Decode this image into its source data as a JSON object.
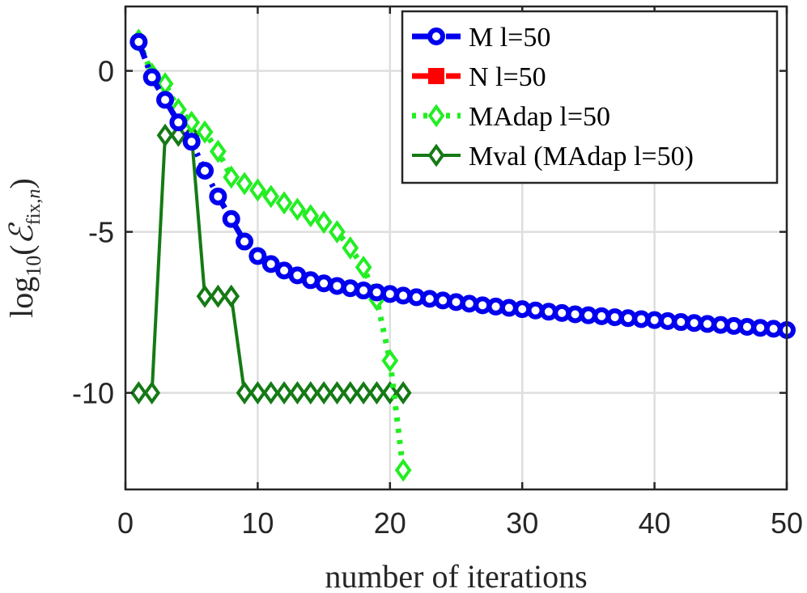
{
  "chart_data": {
    "type": "line",
    "title": "",
    "xlabel": "number of iterations",
    "ylabel": {
      "prefix": "log",
      "sub": "10",
      "open": "(",
      "sym": "ℰ",
      "sym_sub": "fix,",
      "sym_sub_n": "n",
      "close": ")"
    },
    "xlim": [
      0,
      50
    ],
    "ylim": [
      -13,
      2
    ],
    "xticks": [
      0,
      10,
      20,
      30,
      40,
      50
    ],
    "xtick_labels": [
      "0",
      "10",
      "20",
      "30",
      "40",
      "50"
    ],
    "yticks": [
      0,
      -5,
      -10
    ],
    "ytick_labels": [
      "0",
      "-5",
      "-10"
    ],
    "grid": true,
    "legend_position": "top-right",
    "series": [
      {
        "name": "M l=50",
        "color": "#0000ee",
        "marker": "circle",
        "line": "dash-dot",
        "x": [
          1,
          2,
          3,
          4,
          5,
          6,
          7,
          8,
          9,
          10,
          11,
          12,
          13,
          14,
          15,
          16,
          17,
          18,
          19,
          20,
          21,
          22,
          23,
          24,
          25,
          26,
          27,
          28,
          29,
          30,
          31,
          32,
          33,
          34,
          35,
          36,
          37,
          38,
          39,
          40,
          41,
          42,
          43,
          44,
          45,
          46,
          47,
          48,
          49,
          50
        ],
        "y": [
          0.9,
          -0.2,
          -0.9,
          -1.6,
          -2.2,
          -3.1,
          -3.9,
          -4.6,
          -5.3,
          -5.75,
          -6.0,
          -6.2,
          -6.35,
          -6.5,
          -6.6,
          -6.68,
          -6.75,
          -6.82,
          -6.88,
          -6.93,
          -6.98,
          -7.03,
          -7.08,
          -7.13,
          -7.18,
          -7.23,
          -7.28,
          -7.32,
          -7.36,
          -7.4,
          -7.44,
          -7.48,
          -7.52,
          -7.56,
          -7.59,
          -7.62,
          -7.65,
          -7.68,
          -7.71,
          -7.74,
          -7.77,
          -7.8,
          -7.83,
          -7.86,
          -7.89,
          -7.92,
          -7.95,
          -7.98,
          -8.01,
          -8.05
        ]
      },
      {
        "name": "N l=50",
        "color": "#ff0000",
        "marker": "square",
        "line": "dash-dot",
        "x": [],
        "y": []
      },
      {
        "name": "MAdap l=50",
        "color": "#22ee22",
        "marker": "diamond",
        "line": "dotted",
        "x": [
          1,
          2,
          3,
          4,
          5,
          6,
          7,
          8,
          9,
          10,
          11,
          12,
          13,
          14,
          15,
          16,
          17,
          18,
          19,
          20,
          21
        ],
        "y": [
          0.95,
          -0.1,
          -0.4,
          -1.2,
          -1.6,
          -1.9,
          -2.5,
          -3.3,
          -3.5,
          -3.7,
          -3.9,
          -4.1,
          -4.3,
          -4.5,
          -4.7,
          -5.0,
          -5.5,
          -6.1,
          -7.1,
          -9.0,
          -12.4
        ]
      },
      {
        "name": "Mval (MAdap l=50)",
        "color": "#157a15",
        "marker": "diamond",
        "line": "solid",
        "x": [
          1,
          2,
          3,
          4,
          5,
          6,
          7,
          8,
          9,
          10,
          11,
          12,
          13,
          14,
          15,
          16,
          17,
          18,
          19,
          20,
          21
        ],
        "y": [
          -10,
          -10,
          -2,
          -2,
          -2,
          -7,
          -7,
          -7,
          -10,
          -10,
          -10,
          -10,
          -10,
          -10,
          -10,
          -10,
          -10,
          -10,
          -10,
          -10,
          -10
        ]
      }
    ]
  }
}
